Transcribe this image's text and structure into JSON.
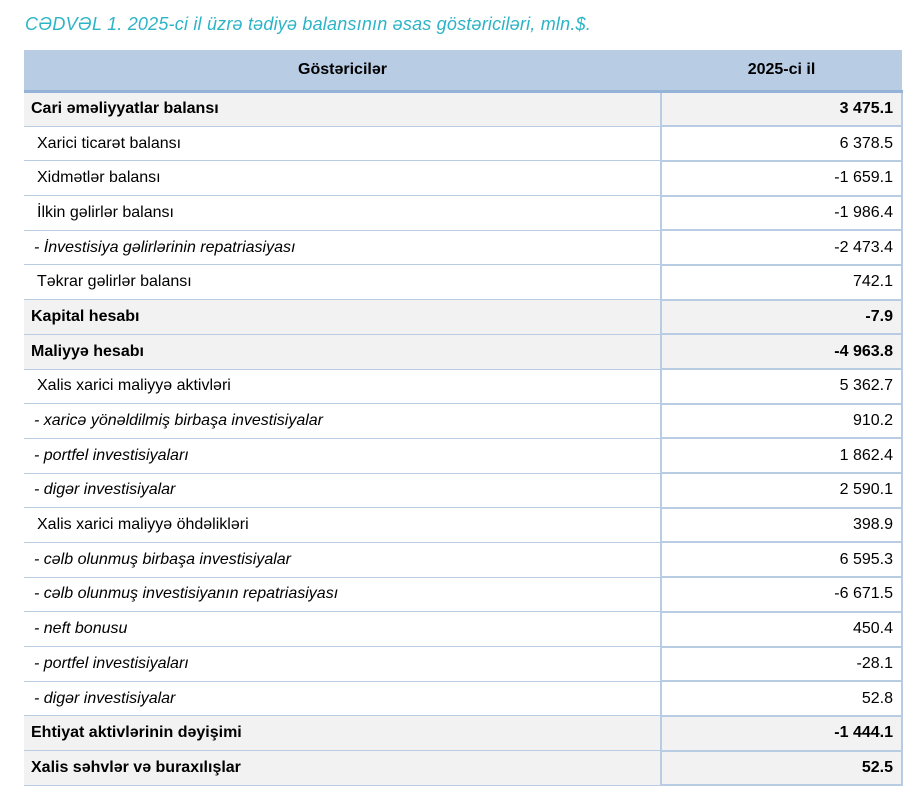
{
  "title": "CƏDVƏL 1. 2025-ci il üzrə tədiyə balansının əsas göstəriciləri, mln.$.",
  "table": {
    "columns": [
      "Göstəricilər",
      "2025-ci il"
    ],
    "rows": [
      {
        "label": "Cari əməliyyatlar balansı",
        "value": "3 475.1",
        "style": "section"
      },
      {
        "label": "Xarici ticarət balansı",
        "value": "6 378.5",
        "style": "normal"
      },
      {
        "label": "Xidmətlər balansı",
        "value": "-1 659.1",
        "style": "normal"
      },
      {
        "label": "İlkin gəlirlər balansı",
        "value": "-1 986.4",
        "style": "normal"
      },
      {
        "label": "- İnvestisiya gəlirlərinin repatriasiyası",
        "value": "-2 473.4",
        "style": "sub"
      },
      {
        "label": "Təkrar gəlirlər balansı",
        "value": "742.1",
        "style": "normal"
      },
      {
        "label": "Kapital hesabı",
        "value": "-7.9",
        "style": "section"
      },
      {
        "label": "Maliyyə hesabı",
        "value": "-4 963.8",
        "style": "section"
      },
      {
        "label": "Xalis xarici maliyyə aktivləri",
        "value": "5 362.7",
        "style": "normal"
      },
      {
        "label": "- xaricə yönəldilmiş birbaşa investisiyalar",
        "value": "910.2",
        "style": "sub"
      },
      {
        "label": "- portfel investisiyaları",
        "value": "1 862.4",
        "style": "sub"
      },
      {
        "label": "- digər investisiyalar",
        "value": "2 590.1",
        "style": "sub"
      },
      {
        "label": "Xalis xarici maliyyə öhdəlikləri",
        "value": "398.9",
        "style": "normal"
      },
      {
        "label": "- cəlb olunmuş birbaşa investisiyalar",
        "value": "6 595.3",
        "style": "sub"
      },
      {
        "label": "- cəlb olunmuş investisiyanın repatriasiyası",
        "value": "-6 671.5",
        "style": "sub"
      },
      {
        "label": "- neft bonusu",
        "value": "450.4",
        "style": "sub"
      },
      {
        "label": "- portfel investisiyaları",
        "value": "-28.1",
        "style": "sub"
      },
      {
        "label": "- digər investisiyalar",
        "value": "52.8",
        "style": "sub"
      },
      {
        "label": "Ehtiyat aktivlərinin dəyişimi",
        "value": "-1 444.1",
        "style": "section"
      },
      {
        "label": "Xalis səhvlər və buraxılışlar",
        "value": "52.5",
        "style": "section"
      }
    ]
  },
  "colors": {
    "header_bg": "#b8cce4",
    "header_border": "#95b3d7",
    "row_border": "#b8cce4",
    "section_bg": "#f2f2f2",
    "title_color": "#2cb4c6",
    "text_color": "#000000"
  }
}
